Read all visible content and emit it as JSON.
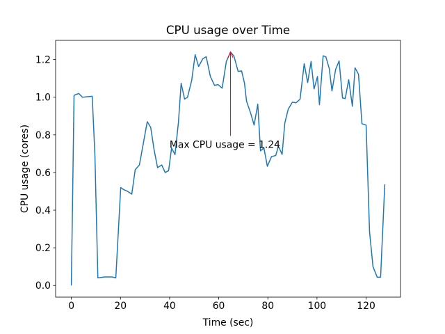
{
  "chart_data": {
    "type": "line",
    "title": "CPU usage over Time",
    "x_label": "Time (sec)",
    "y_label": "CPU usage (cores)",
    "x": [
      0,
      1.1,
      3,
      4.5,
      8.5,
      9.6,
      10.8,
      13.6,
      16.7,
      18.1,
      20.1,
      21.2,
      22.9,
      24.6,
      26,
      27.7,
      30.9,
      32.3,
      33.7,
      35.1,
      36.8,
      38.2,
      39.6,
      40.8,
      42.2,
      43.6,
      44.7,
      46.1,
      47.3,
      49,
      50.4,
      51.8,
      53.5,
      54.9,
      56.6,
      58.3,
      59.7,
      61.4,
      63.1,
      64.8,
      66.2,
      67.9,
      69.3,
      70.5,
      71.3,
      73,
      74.4,
      75.9,
      77,
      78.4,
      79.8,
      81.5,
      83.2,
      84.3,
      85.8,
      86.9,
      88.3,
      90,
      91.4,
      93.1,
      94.8,
      96.2,
      97.6,
      98.8,
      100.2,
      101,
      102.5,
      103.6,
      105,
      106.1,
      107.6,
      109,
      110.4,
      111.5,
      112.9,
      114.4,
      115.5,
      116.9,
      118.3,
      120,
      121.4,
      122.8,
      124.5,
      125.9,
      127.6
    ],
    "values": [
      0,
      1.01,
      1.02,
      1.0,
      1.005,
      0.69,
      0.04,
      0.045,
      0.045,
      0.04,
      0.52,
      0.51,
      0.5,
      0.485,
      0.615,
      0.64,
      0.87,
      0.84,
      0.72,
      0.626,
      0.64,
      0.6,
      0.61,
      0.73,
      0.695,
      0.867,
      1.074,
      0.99,
      1.0,
      1.09,
      1.226,
      1.163,
      1.204,
      1.215,
      1.11,
      1.063,
      1.067,
      1.048,
      1.19,
      1.24,
      1.218,
      1.137,
      1.14,
      1.074,
      0.98,
      0.915,
      0.852,
      0.963,
      0.715,
      0.73,
      0.633,
      0.685,
      0.69,
      0.74,
      0.696,
      0.863,
      0.937,
      0.974,
      0.97,
      0.989,
      1.178,
      1.078,
      1.19,
      1.044,
      1.11,
      0.96,
      1.22,
      1.215,
      1.152,
      1.033,
      1.148,
      1.193,
      0.996,
      0.993,
      1.093,
      0.952,
      1.156,
      1.122,
      0.859,
      0.852,
      0.285,
      0.1,
      0.044,
      0.044,
      0.537
    ],
    "color": "#1f77b4",
    "xlim": [
      -6.4,
      134.0
    ],
    "ylim": [
      -0.062,
      1.302
    ],
    "xticks": [
      0,
      20,
      40,
      60,
      80,
      100,
      120
    ],
    "yticks": [
      {
        "value": 0,
        "label": "0.0"
      },
      0.2,
      0.4,
      0.6,
      0.8,
      {
        "value": 1,
        "label": "1.0"
      },
      1.2
    ],
    "annotation": {
      "text": "Max CPU usage = 1.24",
      "xy": [
        64.8,
        1.24
      ],
      "xytext": [
        40,
        0.75
      ],
      "color": "#ff0000"
    }
  }
}
